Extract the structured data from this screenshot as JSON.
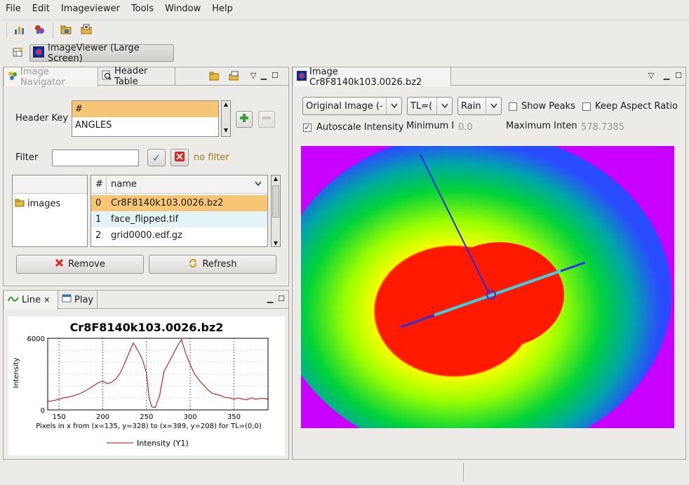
{
  "menubar": {
    "items": [
      "File",
      "Edit",
      "Imageviewer",
      "Tools",
      "Window",
      "Help"
    ]
  },
  "perspective": {
    "label": "ImageViewer (Large Screen)"
  },
  "navigator": {
    "tabs": [
      "Image Navigator",
      "Header Table"
    ],
    "header_key_label": "Header Key",
    "header_keys": [
      "#",
      "ANGLES"
    ],
    "filter_label": "Filter",
    "filter_value": "",
    "filter_status": "no filter",
    "folder": "images",
    "columns": [
      "#",
      "name"
    ],
    "files": [
      {
        "idx": "0",
        "name": "Cr8F8140k103.0026.bz2"
      },
      {
        "idx": "1",
        "name": "face_flipped.tif"
      },
      {
        "idx": "2",
        "name": "grid0000.edf.gz"
      }
    ],
    "remove_label": "Remove",
    "refresh_label": "Refresh"
  },
  "lineplot": {
    "tabs": [
      "Line",
      "Play"
    ]
  },
  "chart_data": {
    "type": "line",
    "title": "Cr8F8140k103.0026.bz2",
    "xlabel": "Pixels in x from  (x=135, y=328) to (x=389, y=208) for TL=(0,0)",
    "ylabel": "Intensity",
    "xlim": [
      137,
      389
    ],
    "ylim": [
      0,
      6000
    ],
    "xticks": [
      150,
      200,
      250,
      300,
      350
    ],
    "yticks": [
      0,
      6000
    ],
    "grid": true,
    "legend": "bottom",
    "series": [
      {
        "name": "Intensity (Y1)",
        "color": "#c00000",
        "x": [
          137,
          145,
          155,
          165,
          175,
          185,
          195,
          200,
          205,
          210,
          215,
          220,
          225,
          230,
          235,
          240,
          245,
          250,
          253,
          256,
          260,
          265,
          270,
          275,
          280,
          285,
          290,
          295,
          300,
          305,
          310,
          315,
          320,
          325,
          330,
          335,
          340,
          345,
          350,
          355,
          360,
          365,
          370,
          375,
          380,
          385,
          389
        ],
        "y": [
          700,
          800,
          1000,
          1150,
          1400,
          1800,
          2300,
          2400,
          2200,
          2300,
          2600,
          3100,
          3900,
          4800,
          5600,
          5000,
          4300,
          3100,
          1000,
          250,
          200,
          1200,
          3200,
          3900,
          4600,
          5300,
          5900,
          4700,
          3800,
          3000,
          2500,
          2100,
          1700,
          1400,
          1300,
          1200,
          1050,
          1000,
          900,
          1000,
          900,
          850,
          1000,
          900,
          950,
          950,
          900
        ]
      }
    ]
  },
  "image_view": {
    "tab_label": "Image Cr8F8140k103.0026.bz2",
    "mode_combo": "Original Image (-",
    "tl_combo": "TL=(",
    "palette_combo": "Rain",
    "show_peaks_label": "Show Peaks",
    "show_peaks_checked": false,
    "keep_aspect_label": "Keep Aspect Ratio",
    "keep_aspect_checked": false,
    "autoscale_label": "Autoscale Intensity",
    "autoscale_checked": true,
    "min_label": "Minimum I",
    "min_value": "0.0",
    "max_label": "Maximum Inten",
    "max_value": "578.7385",
    "colors": {
      "background": "#cc00ff",
      "ring_outer": "#2a4cff",
      "mid": "#00cc44",
      "inner": "#f0f000",
      "core": "#ff0000",
      "line": "#3ad1e6"
    }
  }
}
